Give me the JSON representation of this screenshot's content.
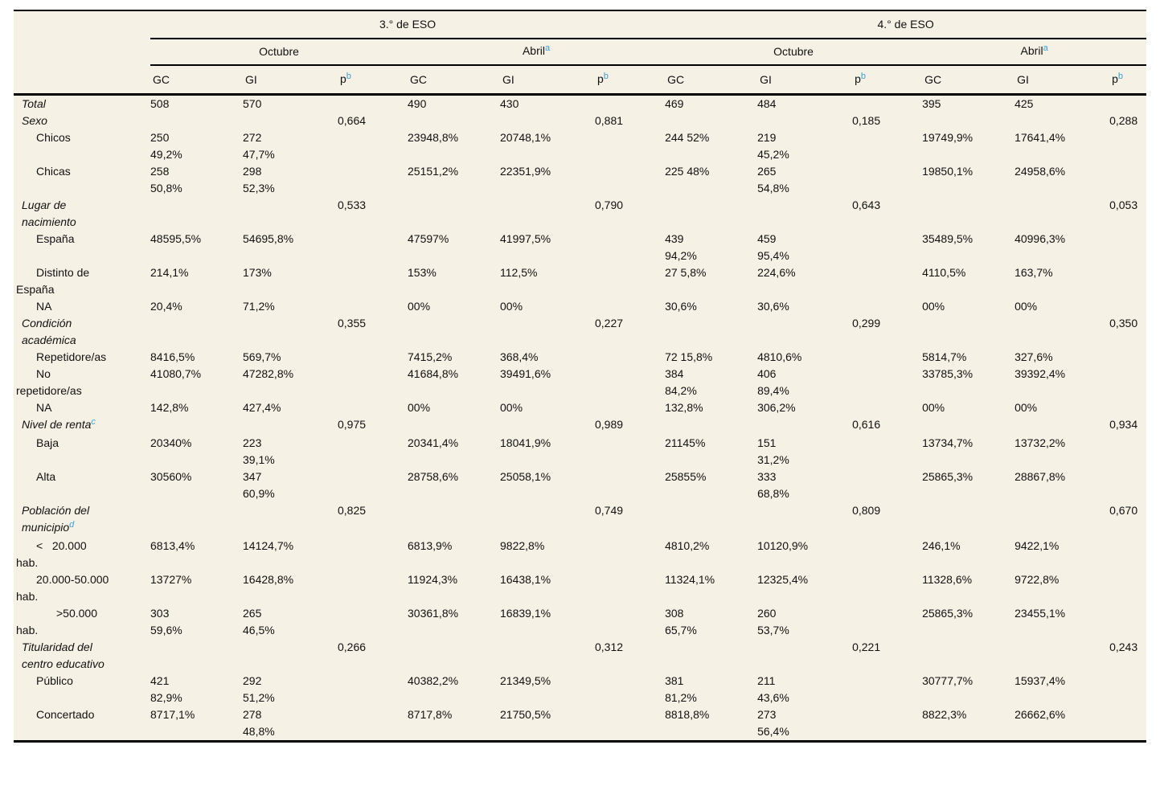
{
  "colors": {
    "background_panel": "#f5f1e5",
    "rule": "#000000",
    "text": "#111111",
    "footnote_accent": "#3d9fd6"
  },
  "table": {
    "group_headers": [
      {
        "label": "3.° de ESO"
      },
      {
        "label": "4.° de ESO"
      }
    ],
    "period_headers": [
      {
        "label": "Octubre",
        "sup": ""
      },
      {
        "label": "Abril",
        "sup": "a"
      },
      {
        "label": "Octubre",
        "sup": ""
      },
      {
        "label": "Abril",
        "sup": "a"
      }
    ],
    "column_headers": [
      {
        "label": "GC",
        "sup": ""
      },
      {
        "label": "GI",
        "sup": ""
      },
      {
        "label": "p",
        "sup": "b"
      },
      {
        "label": "GC",
        "sup": ""
      },
      {
        "label": "GI",
        "sup": ""
      },
      {
        "label": "p",
        "sup": "b"
      },
      {
        "label": "GC",
        "sup": ""
      },
      {
        "label": "GI",
        "sup": ""
      },
      {
        "label": "p",
        "sup": "b"
      },
      {
        "label": "GC",
        "sup": ""
      },
      {
        "label": "GI",
        "sup": ""
      },
      {
        "label": "p",
        "sup": "b"
      }
    ],
    "rows": [
      {
        "style": "section",
        "label": "Total",
        "sup": "",
        "cells": [
          "508",
          "570",
          "",
          "490",
          "430",
          "",
          "469",
          "484",
          "",
          "395",
          "425",
          ""
        ]
      },
      {
        "style": "section",
        "label": "Sexo",
        "sup": "",
        "cells": [
          "",
          "",
          "0,664",
          "",
          "",
          "0,881",
          "",
          "",
          "0,185",
          "",
          "",
          "0,288"
        ]
      },
      {
        "style": "item",
        "label": "Chicos",
        "sup": "",
        "cells": [
          "250\n49,2%",
          "272\n47,7%",
          "",
          "23948,8%",
          "20748,1%",
          "",
          "244 52%",
          "219\n45,2%",
          "",
          "19749,9%",
          "17641,4%",
          ""
        ]
      },
      {
        "style": "item",
        "label": "Chicas",
        "sup": "",
        "cells": [
          "258\n50,8%",
          "298\n52,3%",
          "",
          "25151,2%",
          "22351,9%",
          "",
          "225 48%",
          "265\n54,8%",
          "",
          "19850,1%",
          "24958,6%",
          ""
        ]
      },
      {
        "style": "section",
        "label": "Lugar de\nnacimiento",
        "sup": "",
        "cells": [
          "",
          "",
          "0,533",
          "",
          "",
          "0,790",
          "",
          "",
          "0,643",
          "",
          "",
          "0,053"
        ]
      },
      {
        "style": "item",
        "label": "España",
        "sup": "",
        "cells": [
          "48595,5%",
          "54695,8%",
          "",
          "47597%",
          "41997,5%",
          "",
          "439\n94,2%",
          "459\n95,4%",
          "",
          "35489,5%",
          "40996,3%",
          ""
        ]
      },
      {
        "style": "item",
        "label": "Distinto de\nEspaña",
        "sup": "",
        "cells": [
          "214,1%",
          "173%",
          "",
          "153%",
          "112,5%",
          "",
          "27 5,8%",
          "224,6%",
          "",
          "4110,5%",
          "163,7%",
          ""
        ]
      },
      {
        "style": "item",
        "label": "NA",
        "sup": "",
        "cells": [
          "20,4%",
          "71,2%",
          "",
          "00%",
          "00%",
          "",
          "30,6%",
          "30,6%",
          "",
          "00%",
          "00%",
          ""
        ]
      },
      {
        "style": "section",
        "label": "Condición\nacadémica",
        "sup": "",
        "cells": [
          "",
          "",
          "0,355",
          "",
          "",
          "0,227",
          "",
          "",
          "0,299",
          "",
          "",
          "0,350"
        ]
      },
      {
        "style": "item",
        "label": "Repetidore/as",
        "sup": "",
        "cells": [
          "8416,5%",
          "569,7%",
          "",
          "7415,2%",
          "368,4%",
          "",
          "72 15,8%",
          "4810,6%",
          "",
          "5814,7%",
          "327,6%",
          ""
        ]
      },
      {
        "style": "item",
        "label": "No\nrepetidore/as",
        "sup": "",
        "cells": [
          "41080,7%",
          "47282,8%",
          "",
          "41684,8%",
          "39491,6%",
          "",
          "384\n84,2%",
          "406\n89,4%",
          "",
          "33785,3%",
          "39392,4%",
          ""
        ]
      },
      {
        "style": "item",
        "label": "NA",
        "sup": "",
        "cells": [
          "142,8%",
          "427,4%",
          "",
          "00%",
          "00%",
          "",
          "132,8%",
          "306,2%",
          "",
          "00%",
          "00%",
          ""
        ]
      },
      {
        "style": "section",
        "label": "Nivel de renta",
        "sup": "c",
        "cells": [
          "",
          "",
          "0,975",
          "",
          "",
          "0,989",
          "",
          "",
          "0,616",
          "",
          "",
          "0,934"
        ]
      },
      {
        "style": "item",
        "label": "Baja",
        "sup": "",
        "cells": [
          "20340%",
          "223\n39,1%",
          "",
          "20341,4%",
          "18041,9%",
          "",
          "21145%",
          "151\n31,2%",
          "",
          "13734,7%",
          "13732,2%",
          ""
        ]
      },
      {
        "style": "item",
        "label": "Alta",
        "sup": "",
        "cells": [
          "30560%",
          "347\n60,9%",
          "",
          "28758,6%",
          "25058,1%",
          "",
          "25855%",
          "333\n68,8%",
          "",
          "25865,3%",
          "28867,8%",
          ""
        ]
      },
      {
        "style": "section",
        "label": "Población del\nmunicipio",
        "sup": "d",
        "cells": [
          "",
          "",
          "0,825",
          "",
          "",
          "0,749",
          "",
          "",
          "0,809",
          "",
          "",
          "0,670"
        ]
      },
      {
        "style": "item",
        "label": "<   20.000\nhab.",
        "sup": "",
        "cells": [
          "6813,4%",
          "14124,7%",
          "",
          "6813,9%",
          "9822,8%",
          "",
          "4810,2%",
          "10120,9%",
          "",
          "246,1%",
          "9422,1%",
          ""
        ]
      },
      {
        "style": "item",
        "label": "20.000-50.000\nhab.",
        "sup": "",
        "cells": [
          "13727%",
          "16428,8%",
          "",
          "11924,3%",
          "16438,1%",
          "",
          "11324,1%",
          "12325,4%",
          "",
          "11328,6%",
          "9722,8%",
          ""
        ]
      },
      {
        "style": "item2",
        "label": ">50.000\nhab.",
        "sup": "",
        "cells": [
          "303\n59,6%",
          "265\n46,5%",
          "",
          "30361,8%",
          "16839,1%",
          "",
          "308\n65,7%",
          "260\n53,7%",
          "",
          "25865,3%",
          "23455,1%",
          ""
        ]
      },
      {
        "style": "section",
        "label": "Titularidad del\ncentro educativo",
        "sup": "",
        "cells": [
          "",
          "",
          "0,266",
          "",
          "",
          "0,312",
          "",
          "",
          "0,221",
          "",
          "",
          "0,243"
        ]
      },
      {
        "style": "item",
        "label": "Público",
        "sup": "",
        "cells": [
          "421\n82,9%",
          "292\n51,2%",
          "",
          "40382,2%",
          "21349,5%",
          "",
          "381\n81,2%",
          "211\n43,6%",
          "",
          "30777,7%",
          "15937,4%",
          ""
        ]
      },
      {
        "style": "item",
        "label": "Concertado",
        "sup": "",
        "cells": [
          "8717,1%",
          "278\n48,8%",
          "",
          "8717,8%",
          "21750,5%",
          "",
          "8818,8%",
          "273\n56,4%",
          "",
          "8822,3%",
          "26662,6%",
          ""
        ]
      }
    ]
  }
}
